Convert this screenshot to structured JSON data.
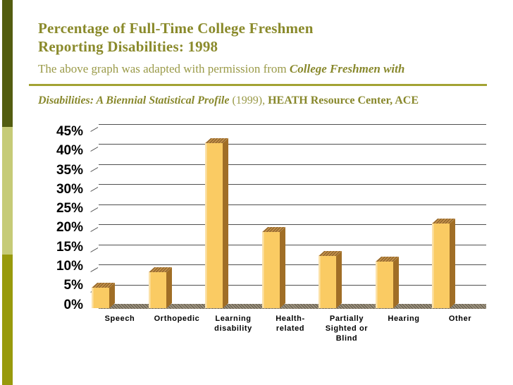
{
  "header": {
    "title_line1": "Percentage of Full-Time College Freshmen",
    "title_line2": "Reporting Disabilities: 1998",
    "credit1_normal": "The above graph was adapted with permission from ",
    "credit1_bold_italic": "College Freshmen with",
    "credit2_bold_italic": "Disabilities: A Biennial Statistical Profile",
    "credit2_normal": " (1999), ",
    "credit2_bold": "HEATH Resource Center, ACE"
  },
  "colors": {
    "title_text": "#8A8A2B",
    "credit_text": "#9A9A48",
    "divider_rule": "#A3A334",
    "accent_bar_dark_olive": "#535D10",
    "accent_bar_light_green": "#C6CB77",
    "accent_bar_olive": "#989A0C",
    "bar_front": "#FACB63",
    "bar_side": "#A06E26",
    "bar_top": "#C2904A",
    "gridline": "#4F4F4F",
    "floor": "#9C927F",
    "axis_text": "#000000"
  },
  "chart_data": {
    "type": "bar",
    "style": "3d-column",
    "title": "",
    "xlabel": "",
    "ylabel": "",
    "unit": "%",
    "categories": [
      "Speech",
      "Orthopedic",
      "Learning disability",
      "Health-related",
      "Partially Sighted or Blind",
      "Hearing",
      "Other"
    ],
    "category_label_lines": [
      [
        "Speech"
      ],
      [
        "Orthopedic"
      ],
      [
        "Learning",
        "disability"
      ],
      [
        "Health-",
        "related"
      ],
      [
        "Partially",
        "Sighted or",
        "Blind"
      ],
      [
        "Hearing"
      ],
      [
        "Other"
      ]
    ],
    "values": [
      5,
      9,
      41,
      19,
      13,
      11.5,
      21
    ],
    "yticks": [
      "45%",
      "40%",
      "35%",
      "30%",
      "25%",
      "20%",
      "15%",
      "10%",
      "5%",
      "0%"
    ],
    "ylim": [
      0,
      45
    ],
    "grid": true,
    "legend": "none"
  }
}
